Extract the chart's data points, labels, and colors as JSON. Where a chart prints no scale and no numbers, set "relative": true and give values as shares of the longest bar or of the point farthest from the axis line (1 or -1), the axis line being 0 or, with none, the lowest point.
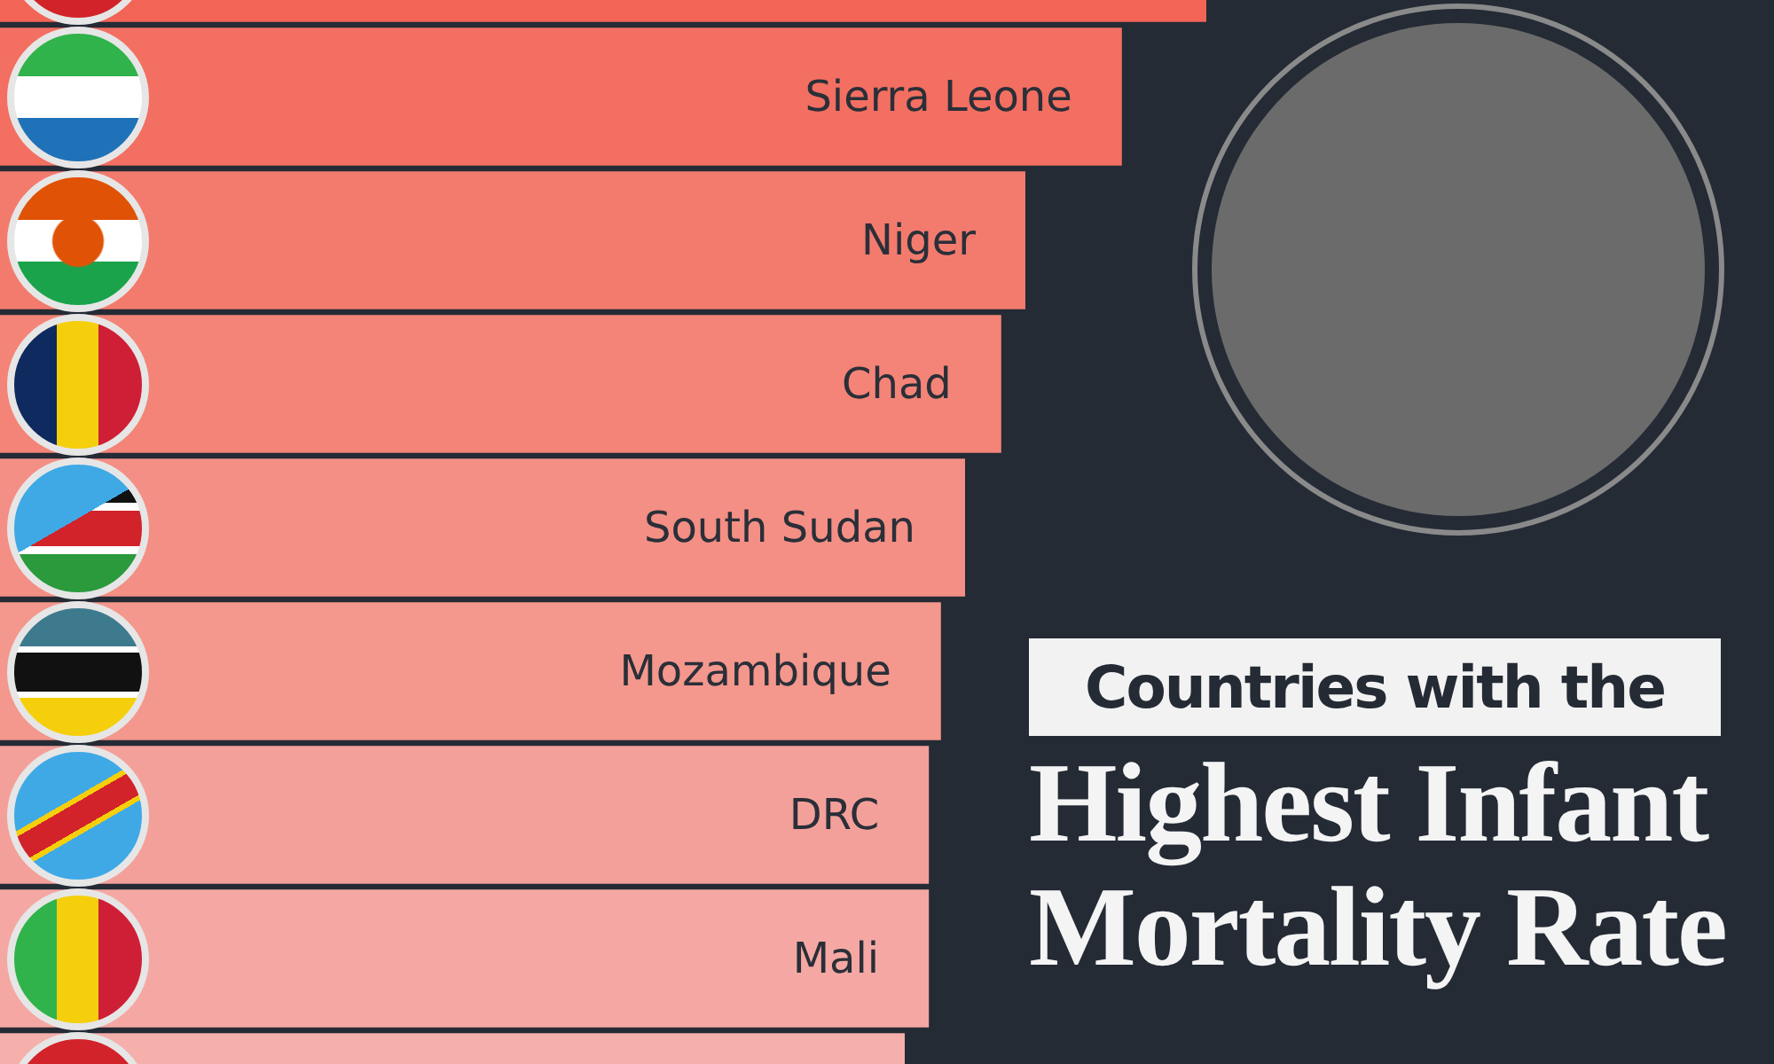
{
  "chart_data": {
    "type": "bar",
    "orientation": "horizontal",
    "relative": true,
    "title": "Countries with the",
    "subtitle": "Highest Infant Mortality Rate",
    "categories": [
      null,
      "Sierra Leone",
      "Niger",
      "Chad",
      "South Sudan",
      "Mozambique",
      "DRC",
      "Mali",
      null
    ],
    "values": [
      1,
      0.93,
      0.85,
      0.83,
      0.8,
      0.78,
      0.77,
      0.77,
      0.75
    ],
    "colors": [
      "#f26556",
      "#f36f61",
      "#f37b6e",
      "#f38477",
      "#f38f84",
      "#f4978d",
      "#f4a09a",
      "#f5a8a3",
      "#f5b0ab"
    ],
    "legend": false
  }
}
